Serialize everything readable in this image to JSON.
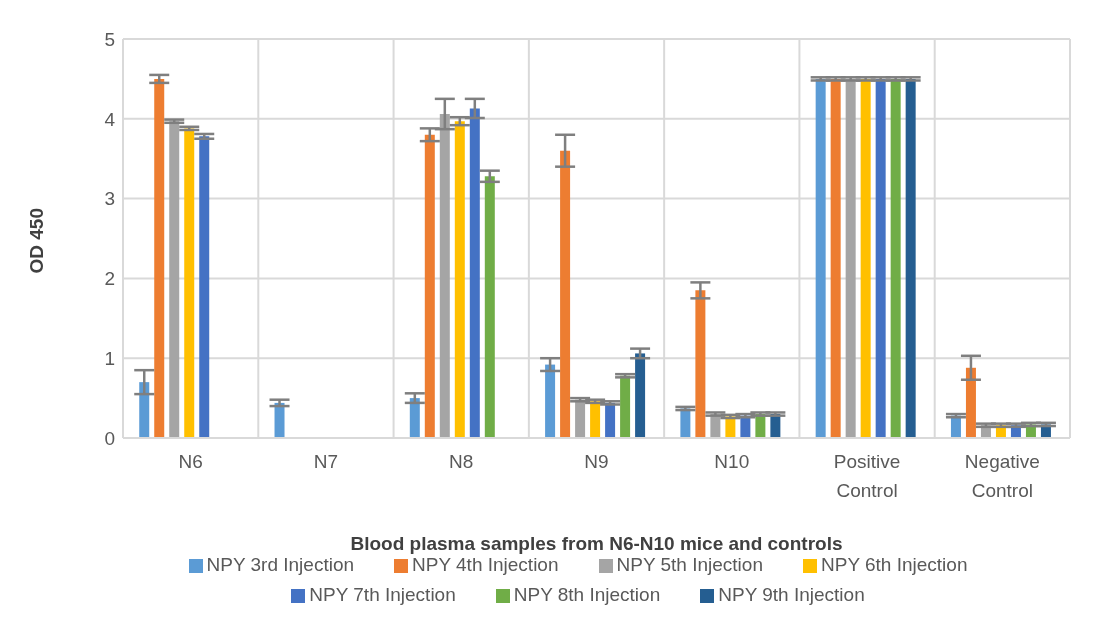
{
  "chart_data": {
    "type": "bar",
    "xlabel": "Blood plasma samples from N6-N10 mice and controls",
    "ylabel": "OD 450",
    "categories": [
      "N6",
      "N7",
      "N8",
      "N9",
      "N10",
      "Positive Control",
      "Negative Control"
    ],
    "series": [
      {
        "name": "NPY 3rd Injection",
        "color": "#5b9bd5",
        "values": [
          0.7,
          0.44,
          0.5,
          0.92,
          0.37,
          4.5,
          0.28
        ],
        "errors": [
          0.15,
          0.04,
          0.06,
          0.08,
          0.02,
          0.02,
          0.02
        ]
      },
      {
        "name": "NPY 4th Injection",
        "color": "#ed7d31",
        "values": [
          4.5,
          null,
          3.8,
          3.6,
          1.85,
          4.5,
          0.88
        ],
        "errors": [
          0.05,
          null,
          0.08,
          0.2,
          0.1,
          0.02,
          0.15
        ]
      },
      {
        "name": "NPY 5th Injection",
        "color": "#a5a5a5",
        "values": [
          3.97,
          null,
          4.06,
          0.48,
          0.3,
          4.5,
          0.16
        ],
        "errors": [
          0.02,
          null,
          0.19,
          0.02,
          0.02,
          0.02,
          0.02
        ]
      },
      {
        "name": "NPY 6th Injection",
        "color": "#ffc000",
        "values": [
          3.88,
          null,
          3.97,
          0.46,
          0.27,
          4.5,
          0.16
        ],
        "errors": [
          0.02,
          null,
          0.05,
          0.02,
          0.02,
          0.02,
          0.02
        ]
      },
      {
        "name": "NPY 7th Injection",
        "color": "#4472c4",
        "values": [
          3.78,
          null,
          4.13,
          0.44,
          0.28,
          4.5,
          0.16
        ],
        "errors": [
          0.03,
          null,
          0.12,
          0.02,
          0.02,
          0.02,
          0.02
        ]
      },
      {
        "name": "NPY 8th Injection",
        "color": "#70ad47",
        "values": [
          null,
          null,
          3.28,
          0.78,
          0.3,
          4.5,
          0.17
        ],
        "errors": [
          null,
          null,
          0.07,
          0.02,
          0.02,
          0.02,
          0.02
        ]
      },
      {
        "name": "NPY 9th Injection",
        "color": "#255e91",
        "values": [
          null,
          null,
          null,
          1.06,
          0.3,
          4.5,
          0.17
        ],
        "errors": [
          null,
          null,
          null,
          0.06,
          0.02,
          0.02,
          0.02
        ]
      }
    ],
    "ylim": [
      0,
      5
    ],
    "yticks": [
      0,
      1,
      2,
      3,
      4,
      5
    ],
    "grid": true,
    "legend": "bottom"
  }
}
